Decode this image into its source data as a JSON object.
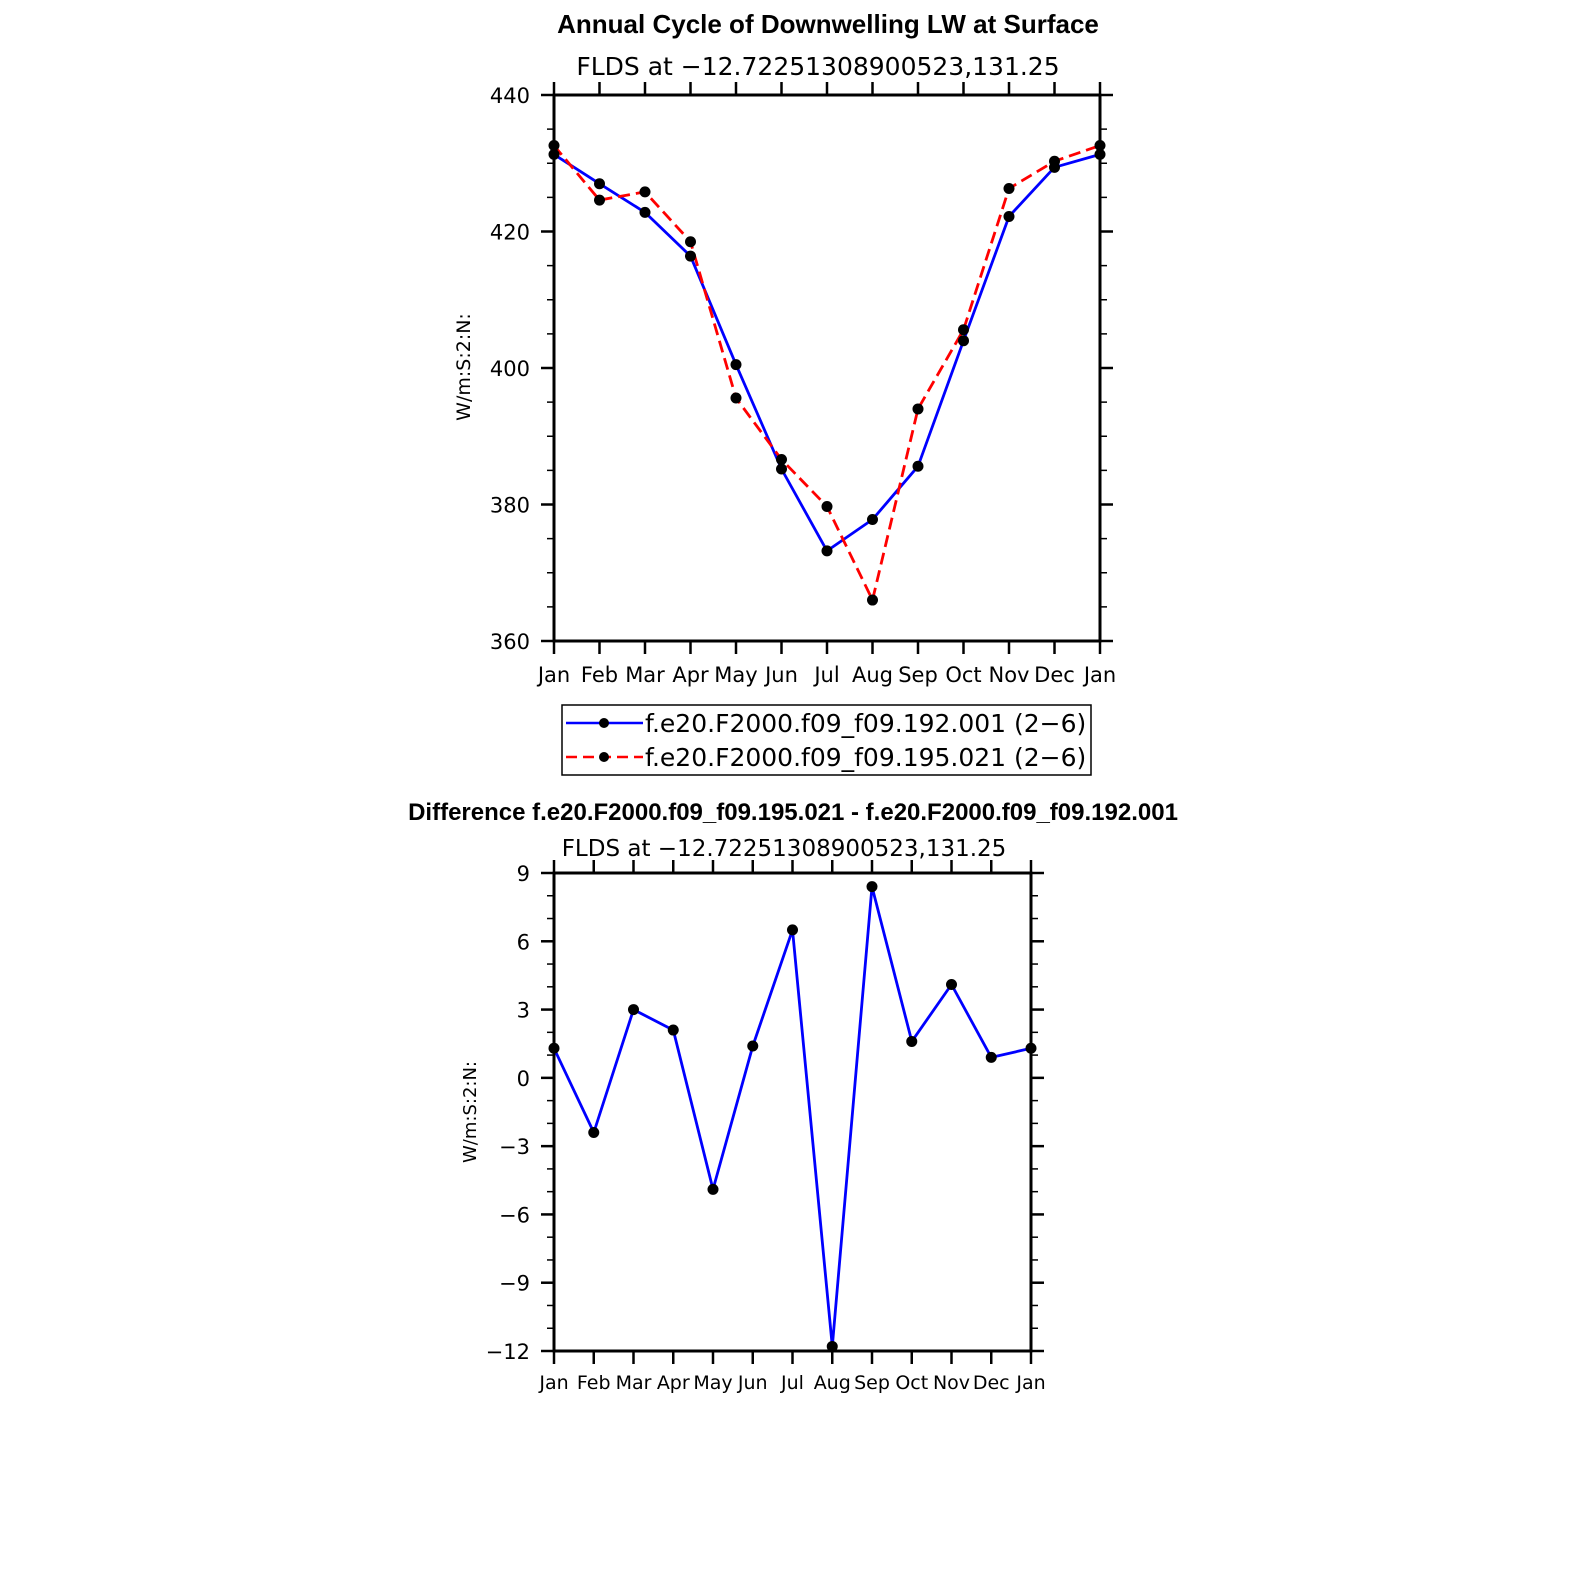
{
  "chart_data": [
    {
      "type": "line",
      "title": "Annual Cycle of Downwelling LW at Surface",
      "subtitle": "FLDS at −12.72251308900523,131.25",
      "xlabel": "",
      "ylabel": "W/m:S:2:N:",
      "categories": [
        "Jan",
        "Feb",
        "Mar",
        "Apr",
        "May",
        "Jun",
        "Jul",
        "Aug",
        "Sep",
        "Oct",
        "Nov",
        "Dec",
        "Jan"
      ],
      "ylim": [
        360,
        440
      ],
      "yticks": [
        "360",
        "380",
        "400",
        "420",
        "440"
      ],
      "legend_position": "bottom",
      "series": [
        {
          "name": "f.e20.F2000.f09_f09.192.001 (2−6)",
          "color": "#0000ff",
          "dash": "solid",
          "values": [
            431.3,
            427.0,
            422.8,
            416.4,
            400.5,
            385.2,
            373.2,
            377.8,
            385.6,
            404.0,
            422.2,
            429.4,
            431.3
          ]
        },
        {
          "name": "f.e20.F2000.f09_f09.195.021 (2−6)",
          "color": "#ff0000",
          "dash": "dashed",
          "values": [
            432.6,
            424.6,
            425.8,
            418.5,
            395.6,
            386.6,
            379.7,
            366.0,
            394.0,
            405.6,
            426.3,
            430.3,
            432.6
          ]
        }
      ]
    },
    {
      "type": "line",
      "title": "Difference f.e20.F2000.f09_f09.195.021 - f.e20.F2000.f09_f09.192.001",
      "subtitle": "FLDS at −12.72251308900523,131.25",
      "xlabel": "",
      "ylabel": "W/m:S:2:N:",
      "categories": [
        "Jan",
        "Feb",
        "Mar",
        "Apr",
        "May",
        "Jun",
        "Jul",
        "Aug",
        "Sep",
        "Oct",
        "Nov",
        "Dec",
        "Jan"
      ],
      "ylim": [
        -12,
        9
      ],
      "yticks": [
        "−12",
        "−9",
        "−6",
        "−3",
        "0",
        "3",
        "6",
        "9"
      ],
      "series": [
        {
          "color": "#0000ff",
          "dash": "solid",
          "values": [
            1.3,
            -2.4,
            3.0,
            2.1,
            -4.9,
            1.4,
            6.5,
            -11.8,
            8.4,
            1.6,
            4.1,
            0.9,
            1.3
          ]
        }
      ]
    }
  ]
}
